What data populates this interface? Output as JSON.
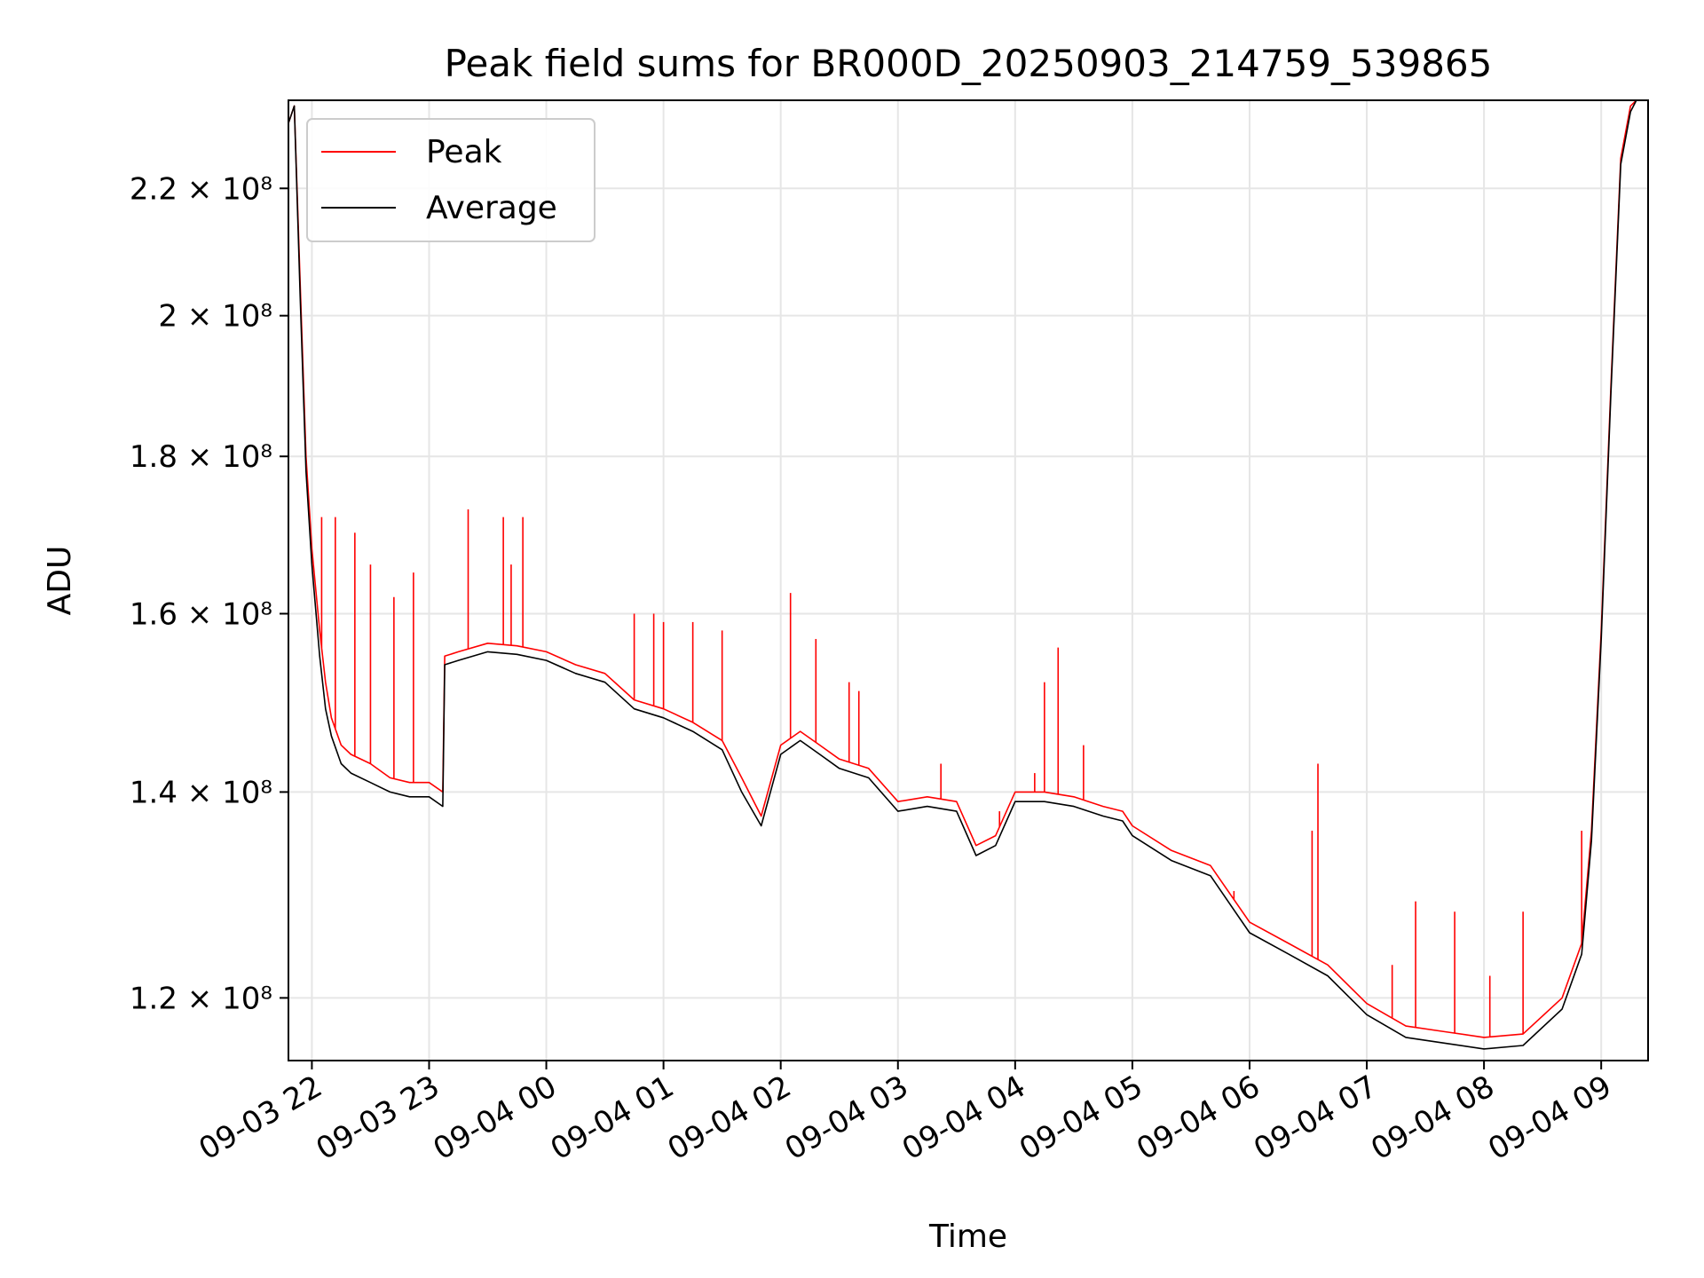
{
  "chart_data": {
    "type": "line",
    "title": "Peak field sums for BR000D_20250903_214759_539865",
    "xlabel": "Time",
    "ylabel": "ADU",
    "x_ticks": [
      "09-03 22",
      "09-03 23",
      "09-04 00",
      "09-04 01",
      "09-04 02",
      "09-04 03",
      "09-04 04",
      "09-04 05",
      "09-04 06",
      "09-04 07",
      "09-04 08",
      "09-04 09"
    ],
    "y_ticks": [
      {
        "value": 120000000,
        "label": "1.2 × 10⁸"
      },
      {
        "value": 140000000,
        "label": "1.4 × 10⁸"
      },
      {
        "value": 160000000,
        "label": "1.6 × 10⁸"
      },
      {
        "value": 180000000,
        "label": "1.8 × 10⁸"
      },
      {
        "value": 200000000,
        "label": "2 × 10⁸"
      },
      {
        "value": 220000000,
        "label": "2.2 × 10⁸"
      }
    ],
    "xlim": [
      "09-03 21:48",
      "09-04 09:24"
    ],
    "ylim": [
      114500000,
      235000000
    ],
    "y_scale": "log",
    "grid": true,
    "legend_position": "top-left",
    "series": [
      {
        "name": "Peak",
        "color": "#ff0000",
        "x": [
          "09-03 21:48",
          "09-03 21:51",
          "09-03 21:54",
          "09-03 21:57",
          "09-03 22:00",
          "09-03 22:04",
          "09-03 22:07",
          "09-03 22:10",
          "09-03 22:15",
          "09-03 22:20",
          "09-03 22:30",
          "09-03 22:40",
          "09-03 22:50",
          "09-03 23:00",
          "09-03 23:07",
          "09-03 23:08",
          "09-03 23:15",
          "09-03 23:30",
          "09-03 23:45",
          "09-04 00:00",
          "09-04 00:15",
          "09-04 00:30",
          "09-04 00:45",
          "09-04 01:00",
          "09-04 01:15",
          "09-04 01:30",
          "09-04 01:40",
          "09-04 01:50",
          "09-04 02:00",
          "09-04 02:10",
          "09-04 02:20",
          "09-04 02:30",
          "09-04 02:45",
          "09-04 03:00",
          "09-04 03:15",
          "09-04 03:30",
          "09-04 03:40",
          "09-04 03:50",
          "09-04 04:00",
          "09-04 04:15",
          "09-04 04:30",
          "09-04 04:45",
          "09-04 04:55",
          "09-04 05:00",
          "09-04 05:20",
          "09-04 05:40",
          "09-04 06:00",
          "09-04 06:20",
          "09-04 06:40",
          "09-04 07:00",
          "09-04 07:20",
          "09-04 07:40",
          "09-04 08:00",
          "09-04 08:20",
          "09-04 08:40",
          "09-04 08:50",
          "09-04 08:55",
          "09-04 09:00",
          "09-04 09:05",
          "09-04 09:10",
          "09-04 09:15",
          "09-04 09:18",
          "09-04 09:22"
        ],
        "y": [
          231000000,
          234000000,
          205000000,
          180000000,
          168000000,
          158000000,
          152000000,
          148000000,
          145000000,
          144000000,
          143000000,
          141500000,
          141000000,
          141000000,
          140000000,
          155000000,
          155500000,
          156500000,
          156200000,
          155500000,
          154000000,
          153000000,
          150000000,
          149000000,
          147500000,
          145500000,
          141500000,
          137500000,
          145000000,
          146500000,
          145000000,
          143500000,
          142500000,
          139000000,
          139500000,
          139000000,
          134500000,
          135500000,
          140000000,
          140000000,
          139500000,
          138500000,
          138000000,
          136500000,
          134000000,
          132500000,
          127000000,
          125000000,
          123000000,
          119500000,
          117500000,
          117000000,
          116500000,
          116800000,
          120000000,
          125000000,
          136000000,
          158000000,
          190000000,
          225000000,
          234000000,
          235000000,
          235000000
        ]
      },
      {
        "name": "Average",
        "color": "#000000",
        "x": [
          "09-03 21:48",
          "09-03 21:51",
          "09-03 21:54",
          "09-03 21:57",
          "09-03 22:00",
          "09-03 22:04",
          "09-03 22:07",
          "09-03 22:10",
          "09-03 22:15",
          "09-03 22:20",
          "09-03 22:30",
          "09-03 22:40",
          "09-03 22:50",
          "09-03 23:00",
          "09-03 23:07",
          "09-03 23:08",
          "09-03 23:15",
          "09-03 23:30",
          "09-03 23:45",
          "09-04 00:00",
          "09-04 00:15",
          "09-04 00:30",
          "09-04 00:45",
          "09-04 01:00",
          "09-04 01:15",
          "09-04 01:30",
          "09-04 01:40",
          "09-04 01:50",
          "09-04 02:00",
          "09-04 02:10",
          "09-04 02:20",
          "09-04 02:30",
          "09-04 02:45",
          "09-04 03:00",
          "09-04 03:15",
          "09-04 03:30",
          "09-04 03:40",
          "09-04 03:50",
          "09-04 04:00",
          "09-04 04:15",
          "09-04 04:30",
          "09-04 04:45",
          "09-04 04:55",
          "09-04 05:00",
          "09-04 05:20",
          "09-04 05:40",
          "09-04 06:00",
          "09-04 06:20",
          "09-04 06:40",
          "09-04 07:00",
          "09-04 07:20",
          "09-04 07:40",
          "09-04 08:00",
          "09-04 08:20",
          "09-04 08:40",
          "09-04 08:50",
          "09-04 08:55",
          "09-04 09:00",
          "09-04 09:05",
          "09-04 09:10",
          "09-04 09:15",
          "09-04 09:18",
          "09-04 09:22"
        ],
        "y": [
          231000000,
          234000000,
          203000000,
          178000000,
          166000000,
          155000000,
          149000000,
          146000000,
          143000000,
          142000000,
          141000000,
          140000000,
          139500000,
          139500000,
          138500000,
          154000000,
          154500000,
          155500000,
          155200000,
          154500000,
          153000000,
          152000000,
          149000000,
          148000000,
          146500000,
          144500000,
          140000000,
          136500000,
          144000000,
          145500000,
          144000000,
          142500000,
          141500000,
          138000000,
          138500000,
          138000000,
          133500000,
          134500000,
          139000000,
          139000000,
          138500000,
          137500000,
          137000000,
          135500000,
          133000000,
          131500000,
          126000000,
          124000000,
          122000000,
          118500000,
          116500000,
          116000000,
          115500000,
          115800000,
          119000000,
          124000000,
          135000000,
          157000000,
          189000000,
          224000000,
          233000000,
          235000000,
          235000000
        ]
      }
    ],
    "spikes": {
      "x": [
        "09-03 22:05",
        "09-03 22:12",
        "09-03 22:22",
        "09-03 22:30",
        "09-03 22:42",
        "09-03 22:52",
        "09-03 23:20",
        "09-03 23:38",
        "09-03 23:42",
        "09-03 23:48",
        "09-04 00:45",
        "09-04 00:55",
        "09-04 01:00",
        "09-04 01:15",
        "09-04 01:30",
        "09-04 02:05",
        "09-04 02:18",
        "09-04 02:35",
        "09-04 02:40",
        "09-04 03:22",
        "09-04 03:52",
        "09-04 04:10",
        "09-04 04:15",
        "09-04 04:22",
        "09-04 04:35",
        "09-04 05:52",
        "09-04 06:32",
        "09-04 06:35",
        "09-04 07:13",
        "09-04 07:25",
        "09-04 07:45",
        "09-04 08:03",
        "09-04 08:20",
        "09-04 08:50"
      ],
      "y": [
        172000000,
        172000000,
        170000000,
        166000000,
        162000000,
        165000000,
        173000000,
        172000000,
        166000000,
        172000000,
        160000000,
        160000000,
        159000000,
        159000000,
        158000000,
        162500000,
        157000000,
        152000000,
        151000000,
        143000000,
        138000000,
        142000000,
        152000000,
        156000000,
        145000000,
        130000000,
        136000000,
        143000000,
        123000000,
        129000000,
        128000000,
        122000000,
        128000000,
        136000000
      ]
    }
  }
}
